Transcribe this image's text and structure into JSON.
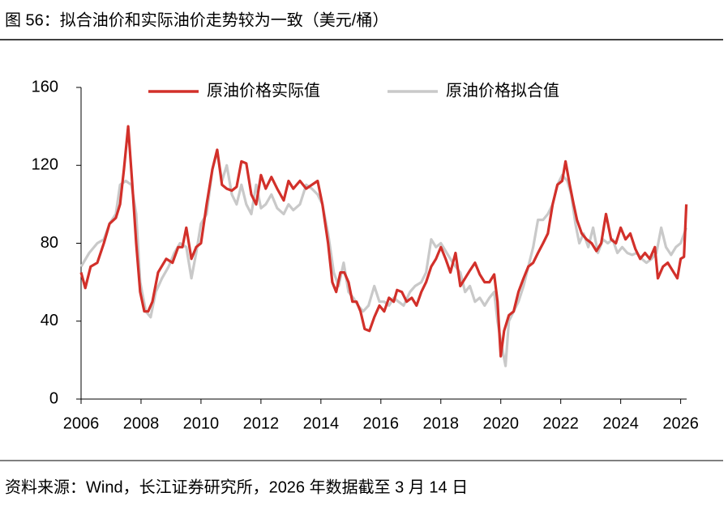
{
  "chart_data": {
    "type": "line",
    "title": "图 56：拟合油价和实际油价走势较为一致（美元/桶）",
    "source": "资料来源：Wind，长江证券研究所，2026 年数据截至 3 月 14 日",
    "xlim": [
      2006,
      2026.2
    ],
    "xticks": [
      2006,
      2008,
      2010,
      2012,
      2014,
      2016,
      2018,
      2020,
      2022,
      2024,
      2026
    ],
    "ylim": [
      0,
      160
    ],
    "yticks": [
      0,
      40,
      80,
      120,
      160
    ],
    "grid": false,
    "legend": "top",
    "series": [
      {
        "name": "原油价格实际值",
        "color": "#d2302a",
        "x": [
          2006.0,
          2006.14,
          2006.32,
          2006.54,
          2006.76,
          2006.95,
          2007.16,
          2007.3,
          2007.43,
          2007.57,
          2007.7,
          2007.84,
          2007.97,
          2008.11,
          2008.24,
          2008.38,
          2008.57,
          2008.84,
          2009.05,
          2009.24,
          2009.38,
          2009.51,
          2009.68,
          2009.84,
          2010.0,
          2010.19,
          2010.38,
          2010.54,
          2010.7,
          2010.86,
          2011.03,
          2011.19,
          2011.35,
          2011.51,
          2011.68,
          2011.84,
          2012.0,
          2012.16,
          2012.35,
          2012.54,
          2012.76,
          2012.92,
          2013.08,
          2013.3,
          2013.51,
          2013.7,
          2013.89,
          2014.05,
          2014.24,
          2014.38,
          2014.51,
          2014.65,
          2014.78,
          2014.92,
          2015.05,
          2015.19,
          2015.32,
          2015.46,
          2015.62,
          2015.78,
          2015.95,
          2016.11,
          2016.27,
          2016.43,
          2016.54,
          2016.7,
          2016.86,
          2017.03,
          2017.19,
          2017.35,
          2017.51,
          2017.68,
          2017.84,
          2018.0,
          2018.16,
          2018.32,
          2018.49,
          2018.65,
          2018.81,
          2018.97,
          2019.14,
          2019.3,
          2019.46,
          2019.62,
          2019.78,
          2019.89,
          2020.0,
          2020.11,
          2020.27,
          2020.43,
          2020.59,
          2020.76,
          2020.92,
          2021.08,
          2021.24,
          2021.41,
          2021.57,
          2021.73,
          2021.89,
          2022.05,
          2022.16,
          2022.3,
          2022.43,
          2022.54,
          2022.7,
          2022.86,
          2023.03,
          2023.19,
          2023.35,
          2023.51,
          2023.68,
          2023.84,
          2024.0,
          2024.16,
          2024.32,
          2024.49,
          2024.65,
          2024.81,
          2024.97,
          2025.14,
          2025.24,
          2025.41,
          2025.57,
          2025.73,
          2025.89,
          2026.0,
          2026.11,
          2026.19
        ],
        "values": [
          65,
          57,
          68,
          70,
          80,
          90,
          93,
          100,
          118,
          140,
          112,
          80,
          55,
          45,
          45,
          50,
          65,
          72,
          70,
          78,
          78,
          88,
          72,
          78,
          80,
          100,
          118,
          128,
          110,
          108,
          107,
          109,
          122,
          121,
          105,
          100,
          115,
          108,
          114,
          108,
          102,
          112,
          108,
          112,
          108,
          110,
          112,
          100,
          80,
          60,
          55,
          65,
          65,
          60,
          50,
          50,
          45,
          36,
          35,
          42,
          48,
          45,
          52,
          50,
          56,
          55,
          50,
          52,
          48,
          55,
          60,
          68,
          72,
          78,
          72,
          65,
          75,
          58,
          62,
          66,
          70,
          64,
          60,
          60,
          64,
          50,
          22,
          35,
          43,
          45,
          55,
          62,
          68,
          70,
          75,
          80,
          85,
          100,
          110,
          112,
          122,
          110,
          100,
          92,
          85,
          82,
          80,
          76,
          80,
          95,
          82,
          80,
          88,
          82,
          85,
          77,
          72,
          75,
          72,
          78,
          62,
          68,
          70,
          66,
          62,
          72,
          73,
          100
        ]
      },
      {
        "name": "原油价格拟合值",
        "color": "#c9c9c9",
        "x": [
          2006.0,
          2006.27,
          2006.54,
          2006.76,
          2006.95,
          2007.16,
          2007.3,
          2007.49,
          2007.68,
          2007.84,
          2007.97,
          2008.16,
          2008.32,
          2008.49,
          2008.7,
          2008.92,
          2009.11,
          2009.3,
          2009.51,
          2009.68,
          2009.84,
          2010.0,
          2010.19,
          2010.38,
          2010.54,
          2010.7,
          2010.86,
          2011.03,
          2011.19,
          2011.35,
          2011.51,
          2011.68,
          2011.84,
          2012.0,
          2012.16,
          2012.35,
          2012.54,
          2012.76,
          2012.92,
          2013.08,
          2013.3,
          2013.51,
          2013.7,
          2013.89,
          2014.05,
          2014.24,
          2014.43,
          2014.59,
          2014.76,
          2014.92,
          2015.08,
          2015.24,
          2015.41,
          2015.59,
          2015.78,
          2015.95,
          2016.11,
          2016.27,
          2016.43,
          2016.59,
          2016.76,
          2016.97,
          2017.14,
          2017.35,
          2017.51,
          2017.68,
          2017.84,
          2018.0,
          2018.16,
          2018.32,
          2018.49,
          2018.65,
          2018.81,
          2018.97,
          2019.14,
          2019.3,
          2019.46,
          2019.62,
          2019.78,
          2019.89,
          2020.0,
          2020.16,
          2020.27,
          2020.43,
          2020.59,
          2020.76,
          2020.92,
          2021.08,
          2021.24,
          2021.41,
          2021.57,
          2021.73,
          2021.89,
          2022.05,
          2022.22,
          2022.35,
          2022.49,
          2022.62,
          2022.76,
          2022.92,
          2023.08,
          2023.24,
          2023.41,
          2023.57,
          2023.73,
          2023.89,
          2024.05,
          2024.22,
          2024.38,
          2024.54,
          2024.7,
          2024.86,
          2025.03,
          2025.19,
          2025.35,
          2025.51,
          2025.68,
          2025.84,
          2026.0,
          2026.19
        ],
        "values": [
          68,
          75,
          80,
          82,
          90,
          95,
          110,
          112,
          110,
          95,
          60,
          45,
          42,
          55,
          62,
          68,
          75,
          80,
          78,
          62,
          75,
          90,
          95,
          118,
          127,
          112,
          120,
          105,
          100,
          110,
          100,
          95,
          110,
          98,
          100,
          105,
          98,
          95,
          100,
          97,
          100,
          110,
          108,
          105,
          100,
          85,
          65,
          58,
          70,
          55,
          52,
          48,
          45,
          48,
          58,
          50,
          50,
          48,
          52,
          50,
          48,
          55,
          58,
          60,
          65,
          82,
          78,
          80,
          76,
          72,
          68,
          65,
          55,
          58,
          50,
          52,
          48,
          52,
          55,
          40,
          30,
          17,
          40,
          45,
          50,
          58,
          68,
          78,
          92,
          92,
          95,
          100,
          110,
          115,
          112,
          105,
          90,
          80,
          85,
          78,
          88,
          75,
          82,
          80,
          82,
          75,
          78,
          75,
          74,
          75,
          72,
          70,
          72,
          75,
          88,
          78,
          74,
          78,
          80,
          88
        ]
      }
    ]
  }
}
